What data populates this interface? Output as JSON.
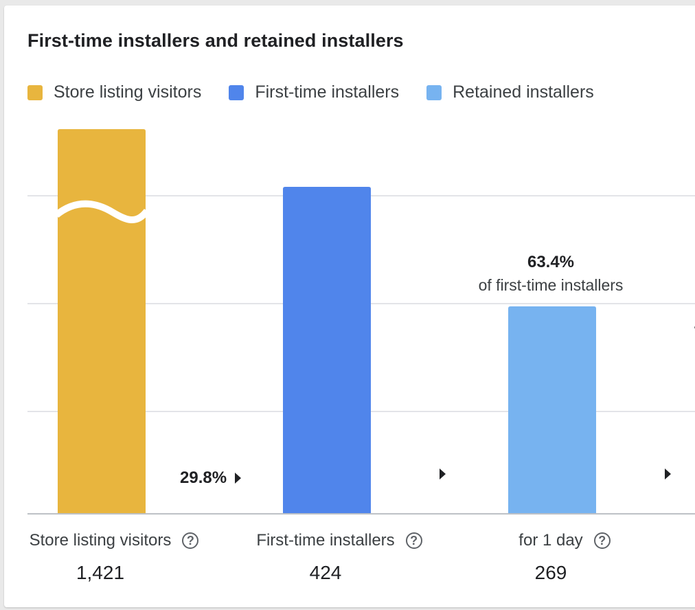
{
  "title": "First-time installers and retained installers",
  "legend": [
    {
      "label": "Store listing visitors",
      "color": "#E8B53E"
    },
    {
      "label": "First-time installers",
      "color": "#5085EB"
    },
    {
      "label": "Retained installers",
      "color": "#77B3F0"
    }
  ],
  "conversion": {
    "visitors_to_installers": "29.8%"
  },
  "retained_annotation": {
    "value": "63.4%",
    "subtitle": "of first-time installers"
  },
  "chart_data": {
    "type": "bar",
    "title": "First-time installers and retained installers",
    "categories": [
      "Store listing visitors",
      "First-time installers",
      "for 1 day"
    ],
    "values": [
      1421,
      424,
      269
    ],
    "value_labels": [
      "1,421",
      "424",
      "269"
    ],
    "colors": [
      "#E8B53E",
      "#5085EB",
      "#77B3F0"
    ],
    "axis_broken_first_bar": true,
    "grid": true,
    "legend_position": "top-left"
  }
}
